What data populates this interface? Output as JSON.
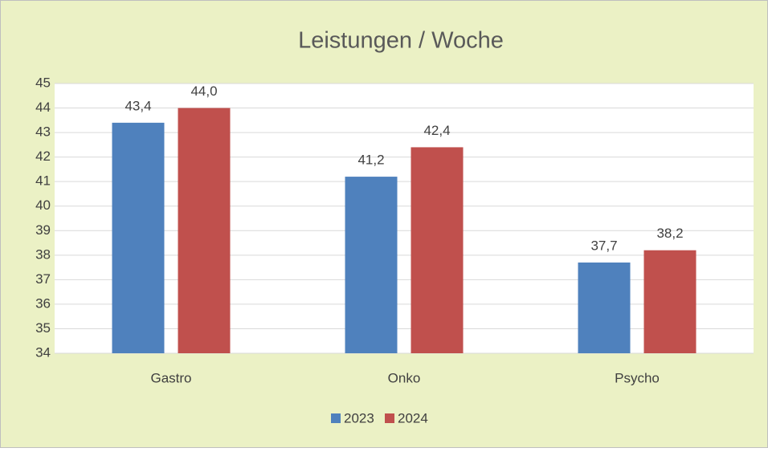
{
  "chart_data": {
    "type": "bar",
    "title": "Leistungen / Woche",
    "categories": [
      "Gastro",
      "Onko",
      "Psycho"
    ],
    "series": [
      {
        "name": "2023",
        "color": "#4f81bd",
        "values": [
          43.4,
          41.2,
          37.7
        ],
        "value_labels": [
          "43,4",
          "41,2",
          "37,7"
        ]
      },
      {
        "name": "2024",
        "color": "#c0504d",
        "values": [
          44.0,
          42.4,
          38.2
        ],
        "value_labels": [
          "44,0",
          "42,4",
          "38,2"
        ]
      }
    ],
    "ylim": [
      34,
      45
    ],
    "yticks": [
      34,
      35,
      36,
      37,
      38,
      39,
      40,
      41,
      42,
      43,
      44,
      45
    ],
    "grid": true,
    "legend": "bottom"
  }
}
